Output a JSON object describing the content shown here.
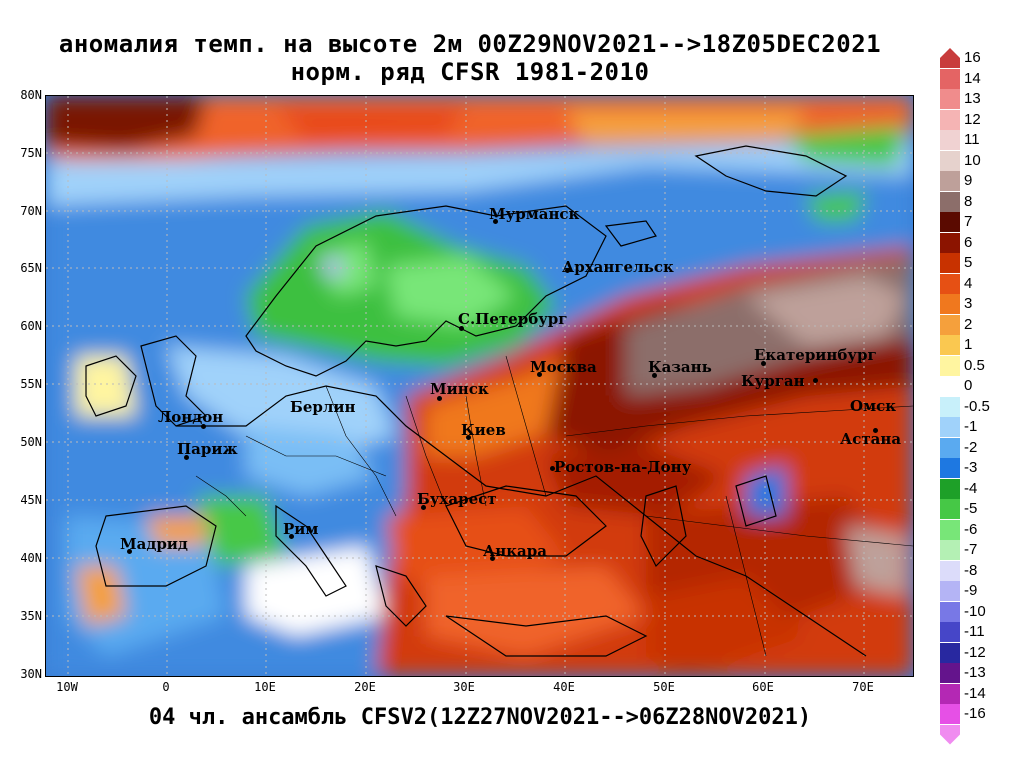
{
  "title": {
    "line1": "аномалия темп. на высоте 2м 00Z29NOV2021-->18Z05DEC2021",
    "line2": "норм. ряд CFSR 1981-2010"
  },
  "subtitle": "04 чл. ансамбль CFSV2(12Z27NOV2021-->06Z28NOV2021)",
  "axes": {
    "lat_labels": [
      "80N",
      "75N",
      "70N",
      "65N",
      "60N",
      "55N",
      "50N",
      "45N",
      "40N",
      "35N",
      "30N"
    ],
    "lon_labels": [
      "10W",
      "0",
      "10E",
      "20E",
      "30E",
      "40E",
      "50E",
      "60E",
      "70E"
    ]
  },
  "cities": [
    {
      "name": "Мурманск"
    },
    {
      "name": "Архангельск"
    },
    {
      "name": "С.Петербург"
    },
    {
      "name": "Москва"
    },
    {
      "name": "Казань"
    },
    {
      "name": "Екатеринбург"
    },
    {
      "name": "Курган"
    },
    {
      "name": "Омск"
    },
    {
      "name": "Астана"
    },
    {
      "name": "Минск"
    },
    {
      "name": "Киев"
    },
    {
      "name": "Ростов-на-Дону"
    },
    {
      "name": "Бухарест"
    },
    {
      "name": "Анкара"
    },
    {
      "name": "Берлин"
    },
    {
      "name": "Лондон"
    },
    {
      "name": "Париж"
    },
    {
      "name": "Рим"
    },
    {
      "name": "Мадрид"
    }
  ],
  "colorbar": {
    "labels": [
      "16",
      "14",
      "13",
      "12",
      "11",
      "10",
      "9",
      "8",
      "7",
      "6",
      "5",
      "4",
      "3",
      "2",
      "1",
      "0.5",
      "0",
      "-0.5",
      "-1",
      "-2",
      "-3",
      "-4",
      "-5",
      "-6",
      "-7",
      "-8",
      "-9",
      "-10",
      "-11",
      "-12",
      "-13",
      "-14",
      "-16"
    ],
    "colors": [
      "#c83c3c",
      "#e46464",
      "#f08c8c",
      "#f5b4b4",
      "#f0d2d2",
      "#e6d2cd",
      "#bea09a",
      "#8c6e6a",
      "#5a0a00",
      "#8c1400",
      "#c83200",
      "#e65014",
      "#f0781e",
      "#f5a03c",
      "#fac850",
      "#fff5a0",
      "#ffffff",
      "#c8f0fa",
      "#a0d2fa",
      "#5aaaf0",
      "#1e78e1",
      "#1ea028",
      "#46c846",
      "#78e678",
      "#b4f0b4",
      "#dcdcfa",
      "#b4b4f5",
      "#7878e6",
      "#4646c8",
      "#2828a0",
      "#64148c",
      "#b428b4",
      "#e650e6",
      "#f08cf0"
    ]
  }
}
